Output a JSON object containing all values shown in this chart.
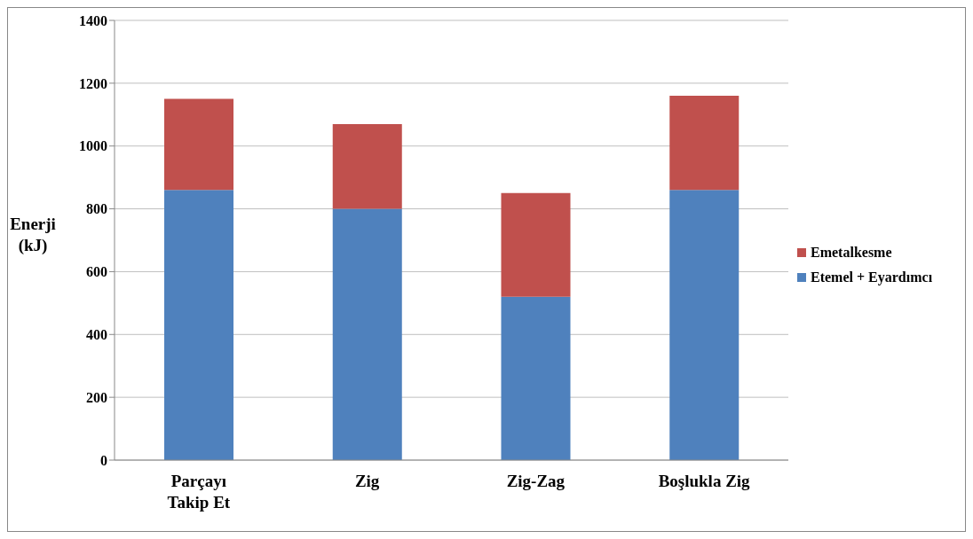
{
  "chart_data": {
    "type": "bar",
    "stacked": true,
    "ylabel": "Enerji (kJ)",
    "categories": [
      "Parçayı Takip Et",
      "Zig",
      "Zig-Zag",
      "Boşlukla Zig"
    ],
    "series": [
      {
        "name": "Etemel + Eyardımcı",
        "color": "#4f81bd",
        "values": [
          860,
          800,
          520,
          860
        ]
      },
      {
        "name": "Emetalkesme",
        "color": "#c0504d",
        "values": [
          290,
          270,
          330,
          300
        ]
      }
    ],
    "ylim": [
      0,
      1400
    ],
    "yticks": [
      0,
      200,
      400,
      600,
      800,
      1000,
      1200,
      1400
    ],
    "grid": "y",
    "legend": "right"
  }
}
